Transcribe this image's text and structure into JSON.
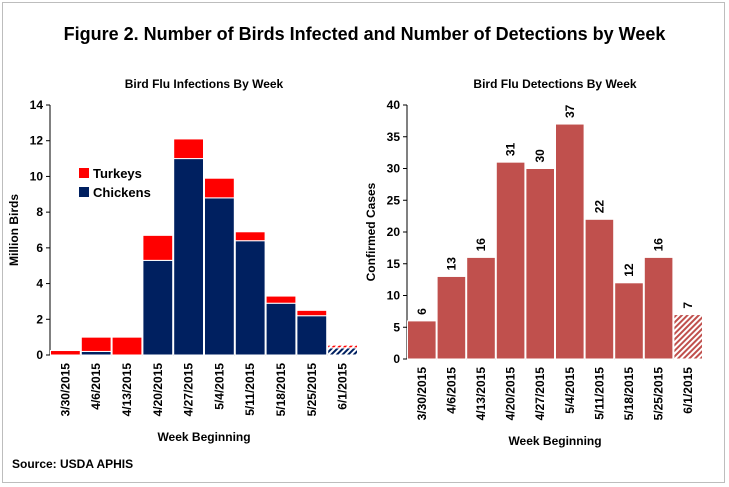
{
  "figure": {
    "title": "Figure 2. Number of Birds Infected and Number of Detections by Week",
    "source": "Source: USDA APHIS"
  },
  "colors": {
    "turkeys": "#ff0000",
    "chickens": "#002060",
    "detections": "#c0504d",
    "partial_week_hatch": "hatched (6/1/2015 bar)"
  },
  "chart_data": [
    {
      "type": "bar",
      "stacked": true,
      "title": "Bird Flu Infections By Week",
      "xlabel": "Week Beginning",
      "ylabel": "Million Birds",
      "ylim": [
        0,
        14
      ],
      "yticks": [
        0,
        2,
        4,
        6,
        8,
        10,
        12,
        14
      ],
      "grid": false,
      "legend_position": "left-middle",
      "categories": [
        "3/30/2015",
        "4/6/2015",
        "4/13/2015",
        "4/20/2015",
        "4/27/2015",
        "5/4/2015",
        "5/11/2015",
        "5/18/2015",
        "5/25/2015",
        "6/1/2015"
      ],
      "series": [
        {
          "name": "Chickens",
          "color": "#002060",
          "values": [
            0.0,
            0.2,
            0.0,
            5.3,
            11.0,
            8.8,
            6.4,
            2.9,
            2.2,
            0.4
          ]
        },
        {
          "name": "Turkeys",
          "color": "#ff0000",
          "values": [
            0.25,
            0.8,
            1.0,
            1.4,
            1.1,
            1.1,
            0.5,
            0.4,
            0.3,
            0.15
          ]
        }
      ],
      "legend": [
        "Turkeys",
        "Chickens"
      ]
    },
    {
      "type": "bar",
      "title": "Bird Flu Detections By Week",
      "xlabel": "Week Beginning",
      "ylabel": "Confirmed Cases",
      "ylim": [
        0,
        40
      ],
      "yticks": [
        0,
        5,
        10,
        15,
        20,
        25,
        30,
        35,
        40
      ],
      "grid": false,
      "categories": [
        "3/30/2015",
        "4/6/2015",
        "4/13/2015",
        "4/20/2015",
        "4/27/2015",
        "5/4/2015",
        "5/11/2015",
        "5/18/2015",
        "5/25/2015",
        "6/1/2015"
      ],
      "values": [
        6,
        13,
        16,
        31,
        30,
        37,
        22,
        12,
        16,
        7
      ],
      "data_labels": [
        "6",
        "13",
        "16",
        "31",
        "30",
        "37",
        "22",
        "12",
        "16",
        "7"
      ],
      "color": "#c0504d"
    }
  ]
}
